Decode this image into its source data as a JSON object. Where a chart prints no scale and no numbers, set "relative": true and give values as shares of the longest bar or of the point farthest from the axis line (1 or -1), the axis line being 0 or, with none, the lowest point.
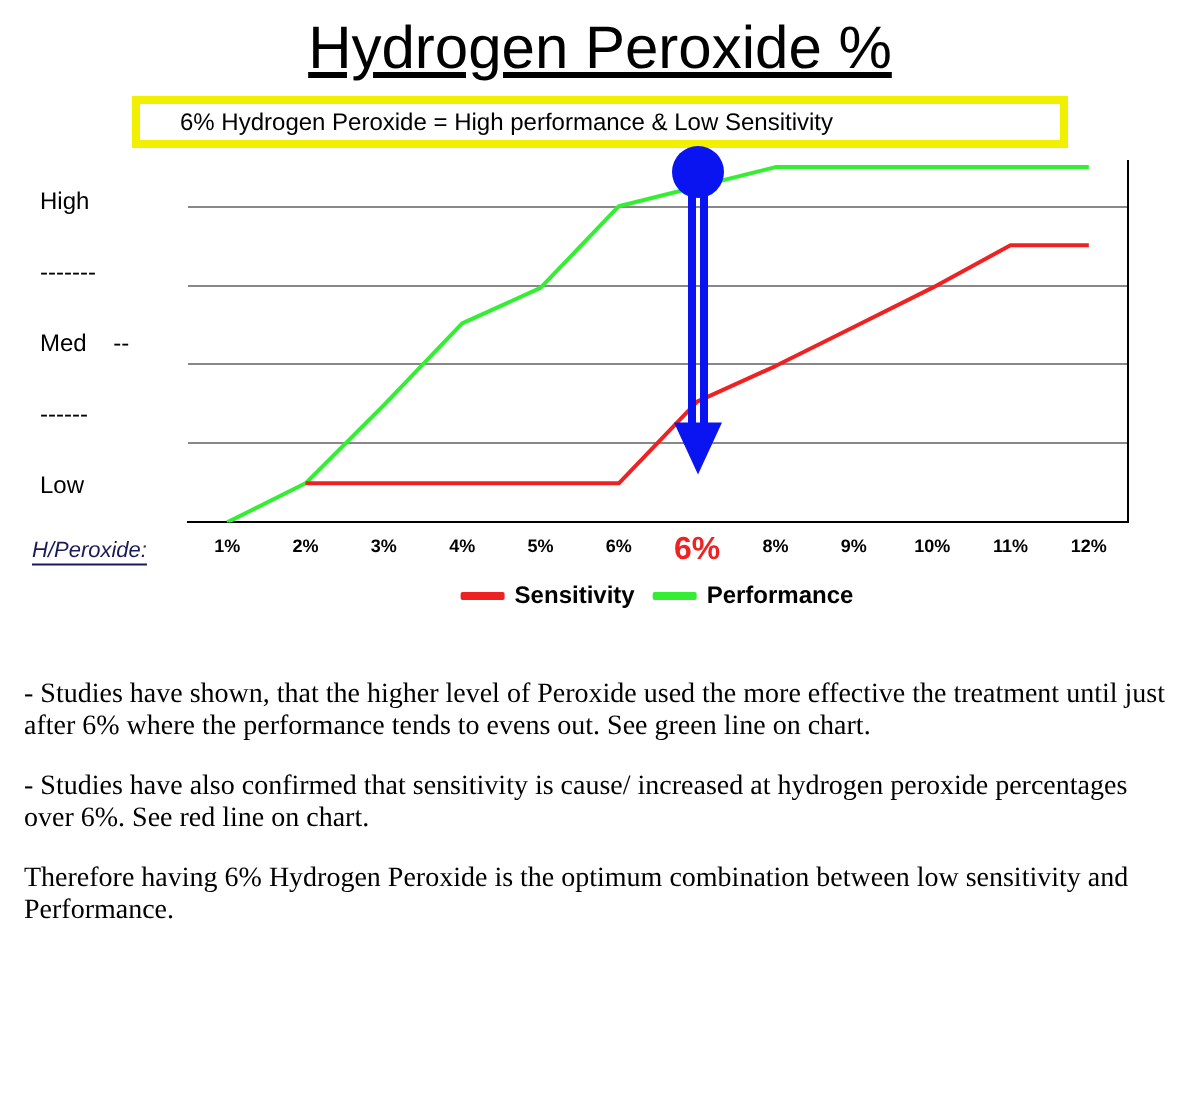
{
  "chart_data": {
    "type": "line",
    "title": "Hydrogen Peroxide %",
    "subtitle": "6% Hydrogen Peroxide = High performance & Low Sensitivity",
    "xlabel": "H/Peroxide:",
    "relative": true,
    "categories": [
      "1%",
      "2%",
      "3%",
      "4%",
      "5%",
      "6%",
      null,
      "8%",
      "9%",
      "10%",
      "11%",
      "12%"
    ],
    "series": [
      {
        "name": "Sensitivity",
        "color": "#ee2222",
        "values": [
          null,
          0.11,
          0.11,
          0.11,
          0.11,
          0.11,
          0.34,
          0.44,
          0.55,
          0.66,
          0.78,
          0.78
        ]
      },
      {
        "name": "Performance",
        "color": "#33ee33",
        "values": [
          0,
          0.11,
          0.33,
          0.56,
          0.66,
          0.89,
          null,
          1,
          1,
          1,
          1,
          1
        ]
      }
    ],
    "grid": "y",
    "legend": "bottom",
    "marker": "none",
    "line_style": "solid",
    "annotations": [
      "High",
      "-------",
      "Med    --",
      "------",
      "Low",
      "6%",
      "- Studies have shown, that the higher level of Peroxide used the more effective the treatment until just after 6% where the performance tends to evens out. See green line on chart.",
      "- Studies have also confirmed that sensitivity is cause/ increased at hydrogen peroxide percentages over 6%. See red line on chart.",
      "Therefore having 6% Hydrogen Peroxide is the optimum combination between low sensitivity and Performance."
    ]
  }
}
